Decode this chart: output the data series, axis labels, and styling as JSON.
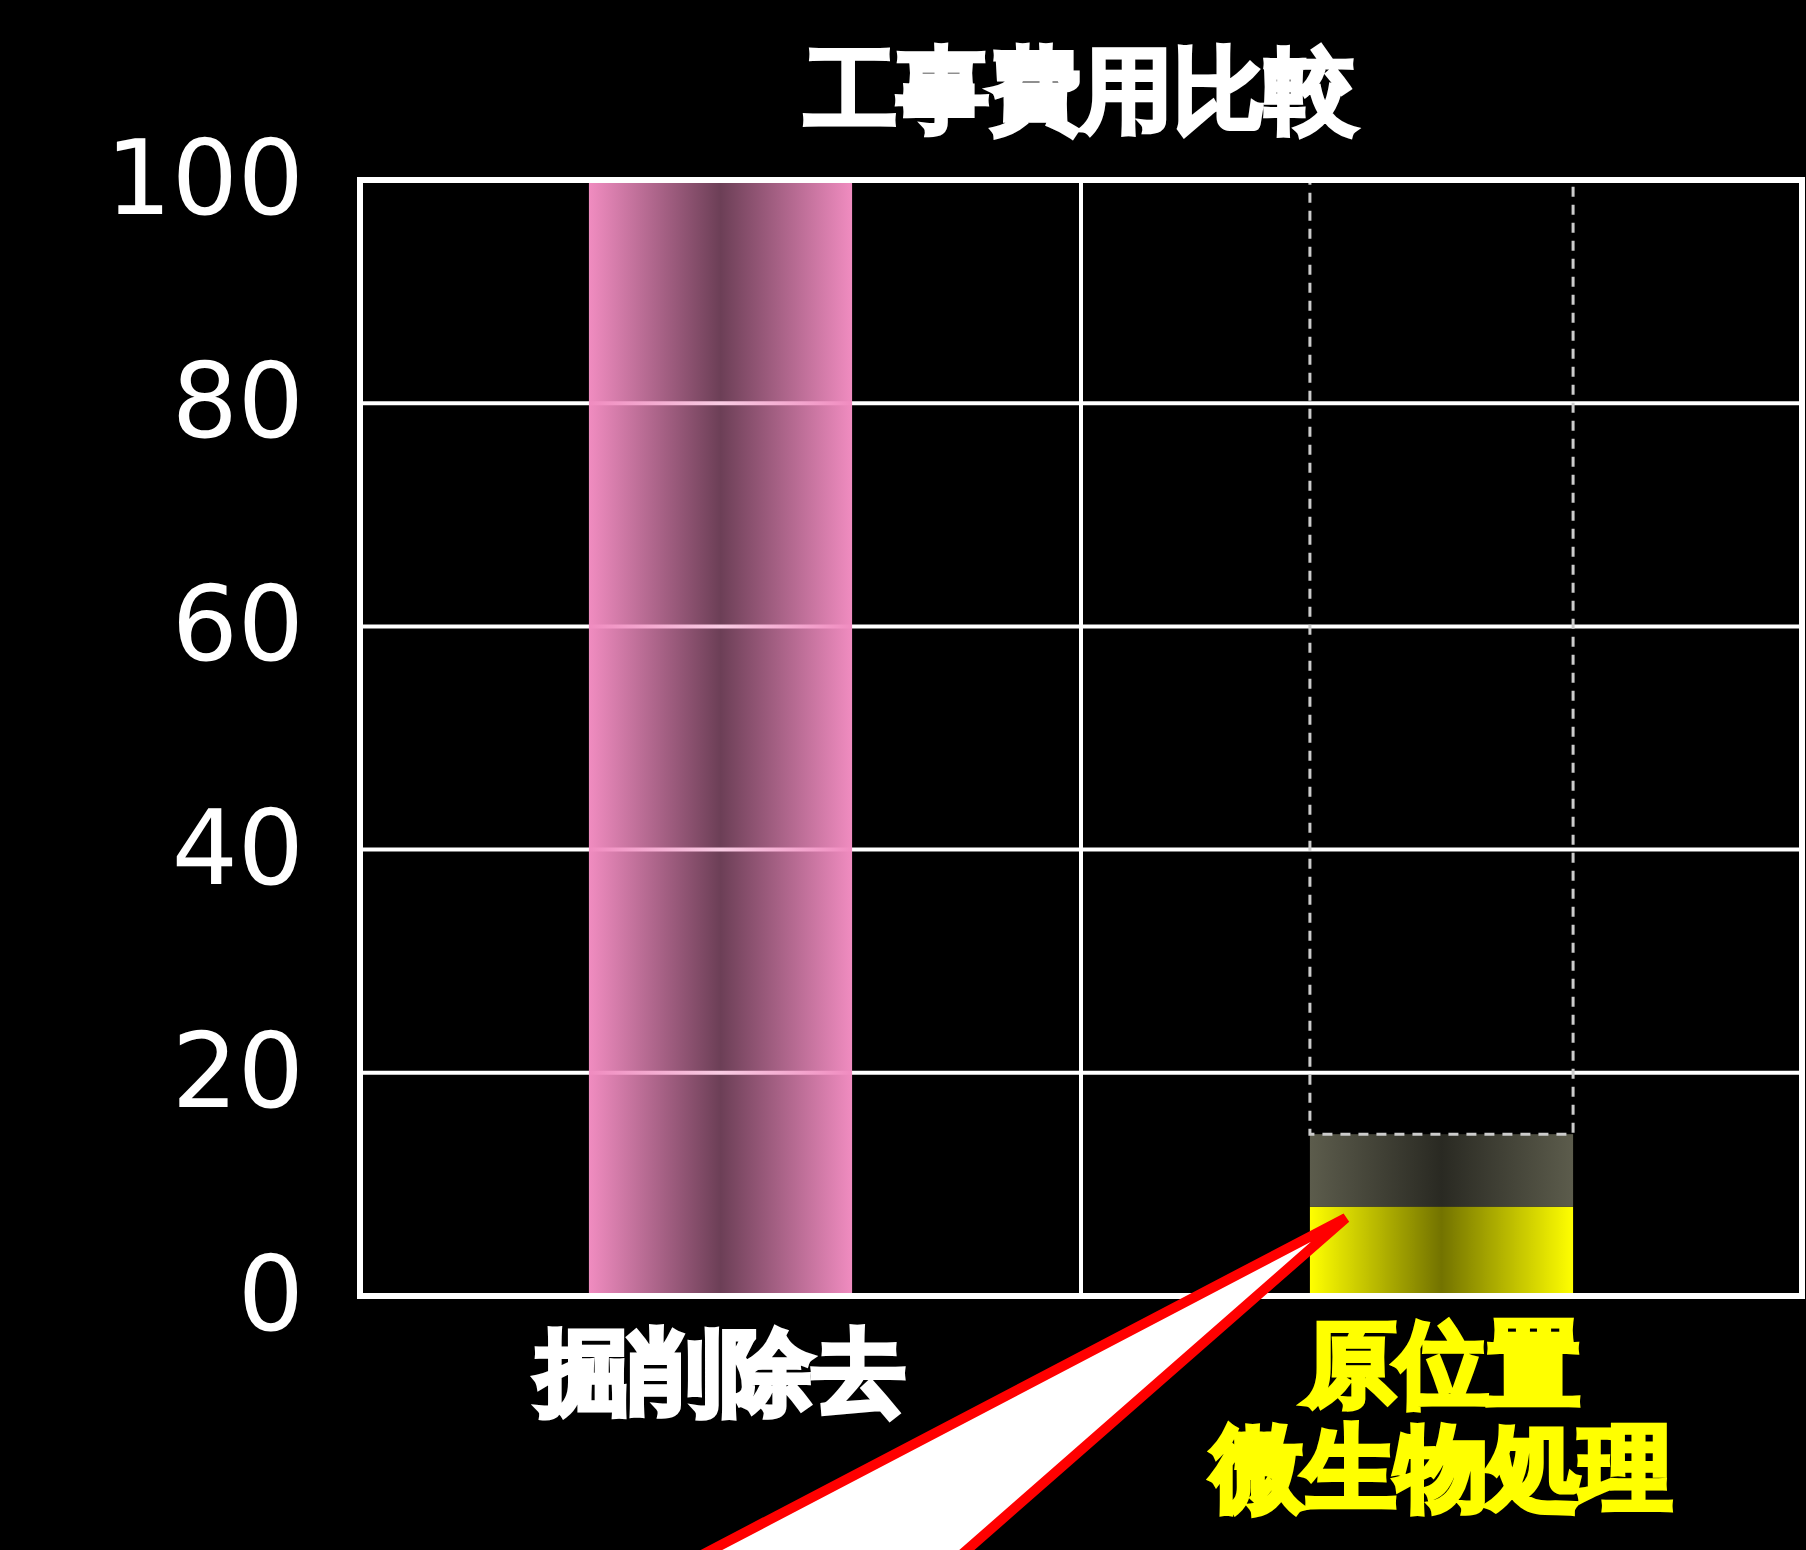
{
  "chart_data": {
    "type": "bar",
    "title": "工事費用比較",
    "categories": [
      "掘削除去",
      "原位置微生物処理"
    ],
    "stacked": true,
    "grid": true,
    "ylim": [
      0,
      100
    ],
    "yticks": [
      0,
      20,
      40,
      60,
      80,
      100
    ],
    "series": [
      {
        "colors": [
          "#f08cc0",
          "#ffff00"
        ],
        "values": [
          100,
          8
        ]
      },
      {
        "color": "#5c5c4c",
        "values": [
          null,
          6.5
        ]
      },
      {
        "color": "#cccccc",
        "line_style": "dashed",
        "values": [
          null,
          85.5
        ]
      }
    ]
  }
}
